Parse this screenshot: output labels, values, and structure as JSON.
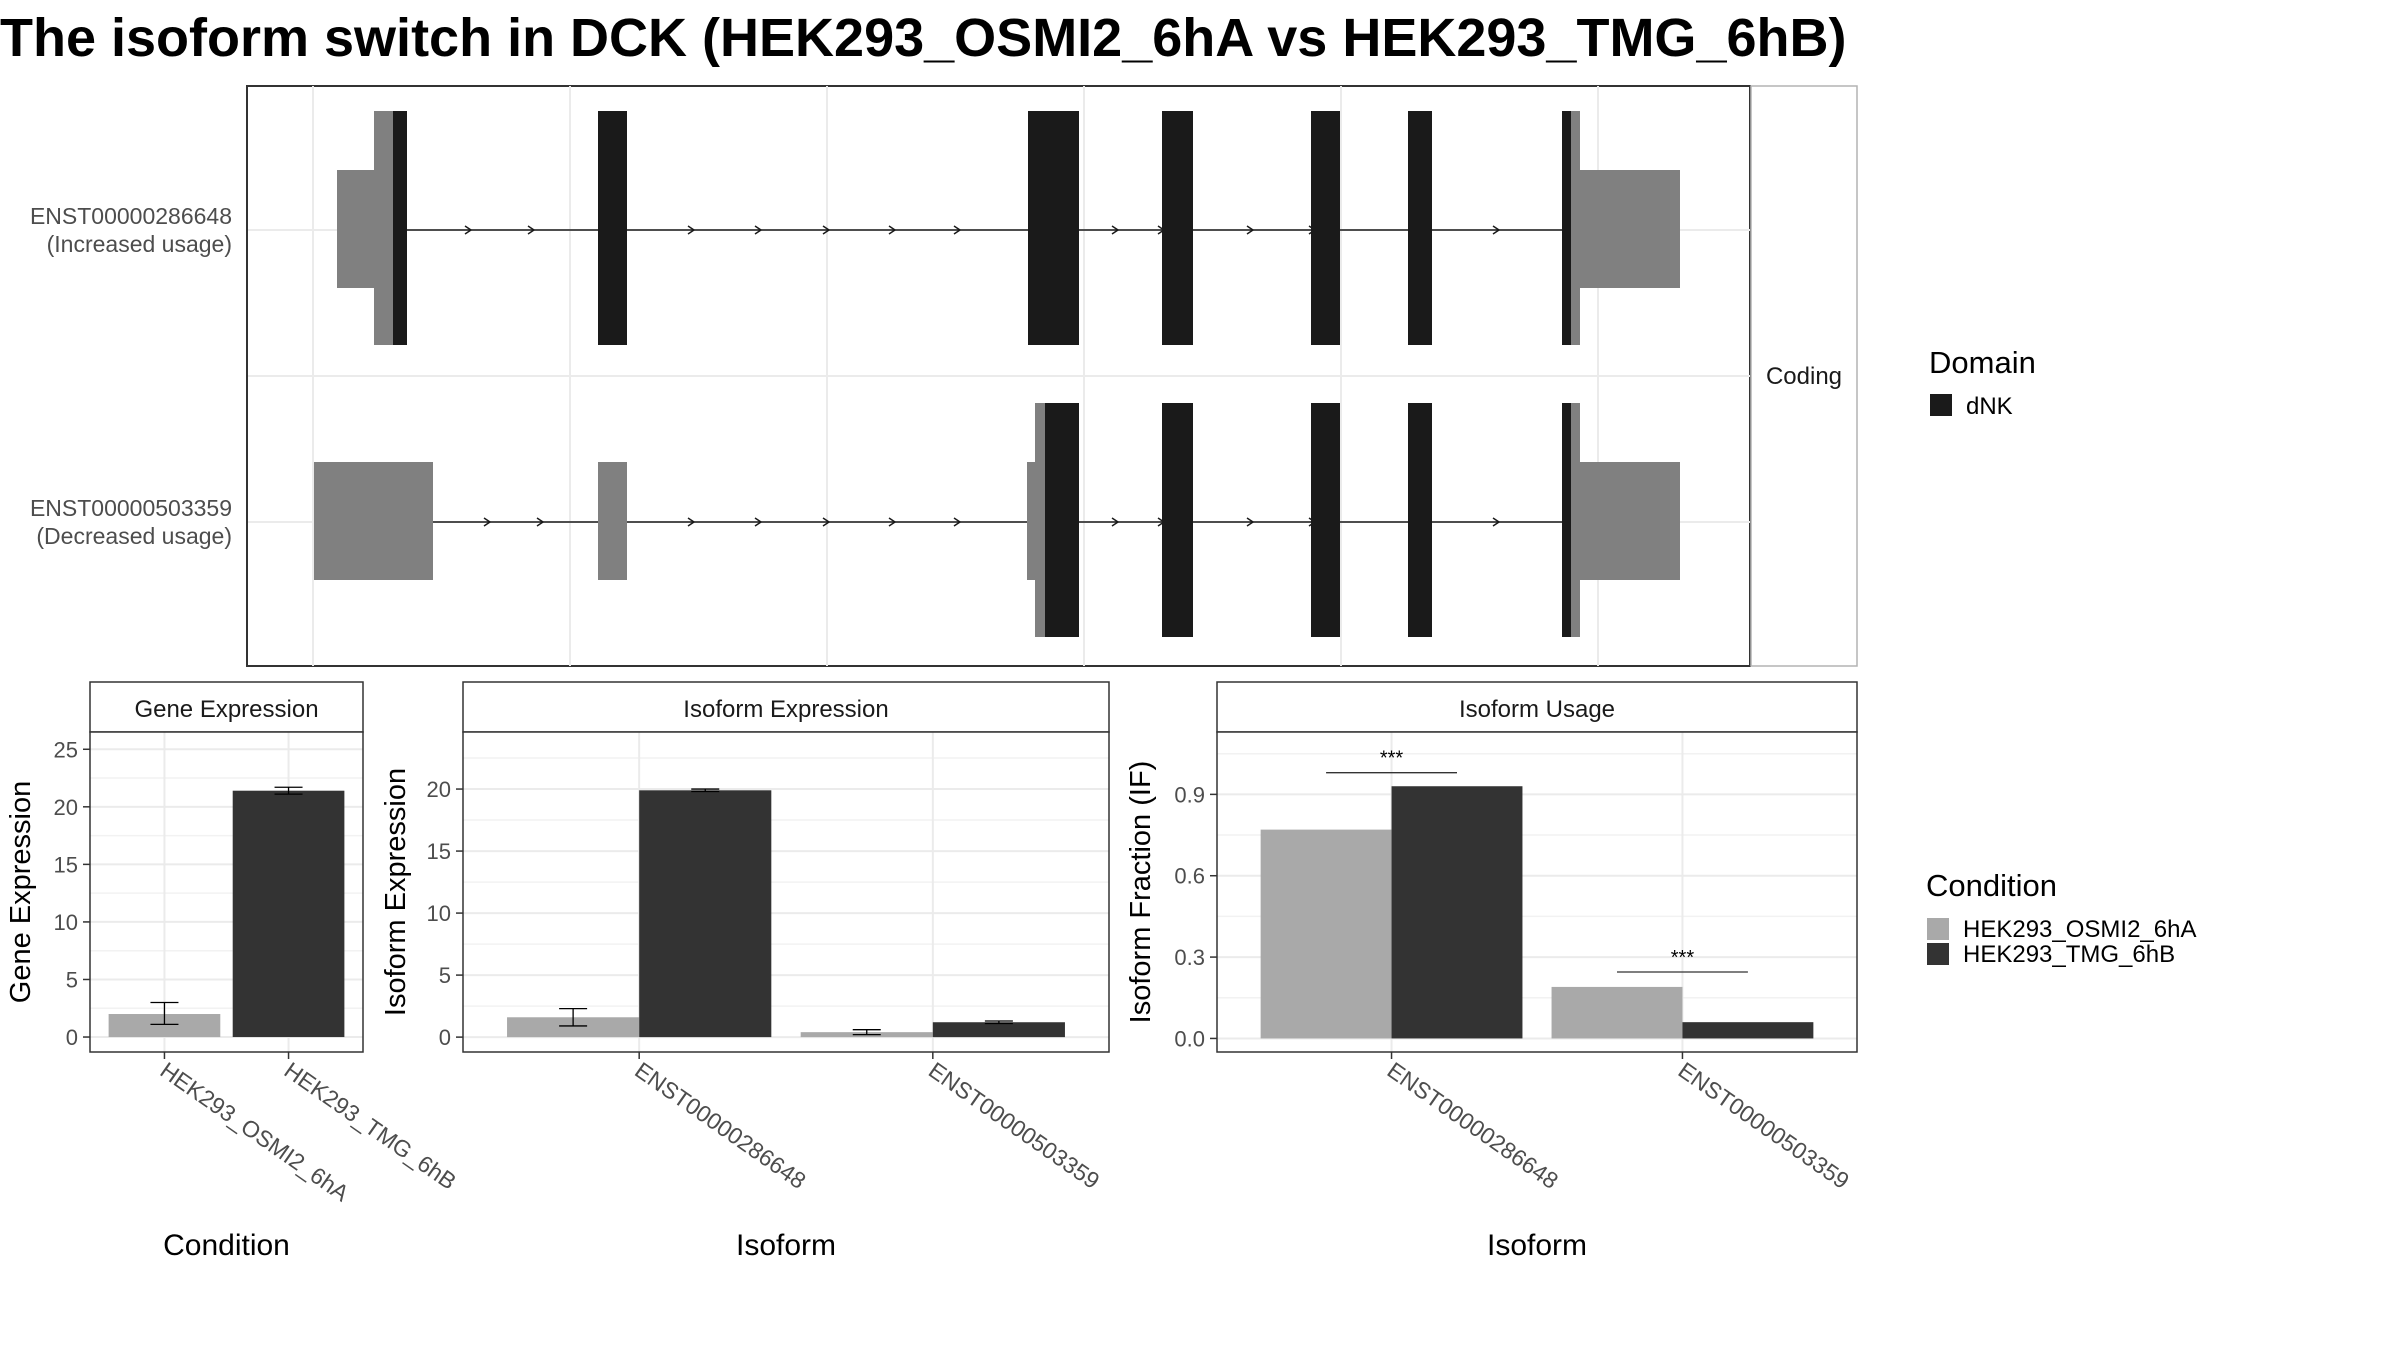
{
  "title": "The isoform switch in DCK (HEK293_OSMI2_6hA vs HEK293_TMG_6hB)",
  "structure": {
    "isoforms": [
      {
        "id": "ENST00000286648",
        "usage": "(Increased usage)"
      },
      {
        "id": "ENST00000503359",
        "usage": "(Decreased usage)"
      }
    ],
    "strip_label": "Coding"
  },
  "legends": {
    "domain": {
      "title": "Domain",
      "items": [
        {
          "label": "dNK",
          "color": "#1a1a1a"
        }
      ]
    },
    "condition": {
      "title": "Condition",
      "items": [
        {
          "label": "HEK293_OSMI2_6hA",
          "color": "#a9a9a9"
        },
        {
          "label": "HEK293_TMG_6hB",
          "color": "#333333"
        }
      ]
    }
  },
  "chart_data": [
    {
      "type": "bar",
      "title": "Gene Expression",
      "xlabel": "Condition",
      "ylabel": "Gene Expression",
      "categories": [
        "HEK293_OSMI2_6hA",
        "HEK293_TMG_6hB"
      ],
      "values": [
        2.0,
        21.4
      ],
      "error_low": [
        1.1,
        21.1
      ],
      "error_high": [
        3.0,
        21.7
      ],
      "colors": [
        "#a9a9a9",
        "#333333"
      ],
      "ylim": [
        -1.3,
        26.5
      ],
      "yticks": [
        0,
        5,
        10,
        15,
        20,
        25
      ],
      "yticklabels": [
        "0",
        "5",
        "10",
        "15",
        "20",
        "25"
      ]
    },
    {
      "type": "bar",
      "title": "Isoform Expression",
      "xlabel": "Isoform",
      "ylabel": "Isoform Expression",
      "categories": [
        "ENST00000286648",
        "ENST00000503359"
      ],
      "series": [
        {
          "name": "HEK293_OSMI2_6hA",
          "color": "#a9a9a9",
          "values": [
            1.6,
            0.4
          ],
          "error_low": [
            0.9,
            0.2
          ],
          "error_high": [
            2.3,
            0.6
          ]
        },
        {
          "name": "HEK293_TMG_6hB",
          "color": "#333333",
          "values": [
            19.9,
            1.2
          ],
          "error_low": [
            19.8,
            1.1
          ],
          "error_high": [
            20.0,
            1.3
          ]
        }
      ],
      "ylim": [
        -1.2,
        24.6
      ],
      "yticks": [
        0,
        5,
        10,
        15,
        20
      ],
      "yticklabels": [
        "0",
        "5",
        "10",
        "15",
        "20"
      ]
    },
    {
      "type": "bar",
      "title": "Isoform Usage",
      "xlabel": "Isoform",
      "ylabel": "Isoform Fraction (IF)",
      "categories": [
        "ENST00000286648",
        "ENST00000503359"
      ],
      "series": [
        {
          "name": "HEK293_OSMI2_6hA",
          "color": "#a9a9a9",
          "values": [
            0.77,
            0.19
          ]
        },
        {
          "name": "HEK293_TMG_6hB",
          "color": "#333333",
          "values": [
            0.93,
            0.06
          ]
        }
      ],
      "significance": [
        {
          "label": "***",
          "y": 0.98
        },
        {
          "label": "***",
          "y": 0.245
        }
      ],
      "ylim": [
        -0.05,
        1.13
      ],
      "yticks": [
        0.0,
        0.3,
        0.6,
        0.9
      ],
      "yticklabels": [
        "0.0",
        "0.3",
        "0.6",
        "0.9"
      ]
    }
  ]
}
